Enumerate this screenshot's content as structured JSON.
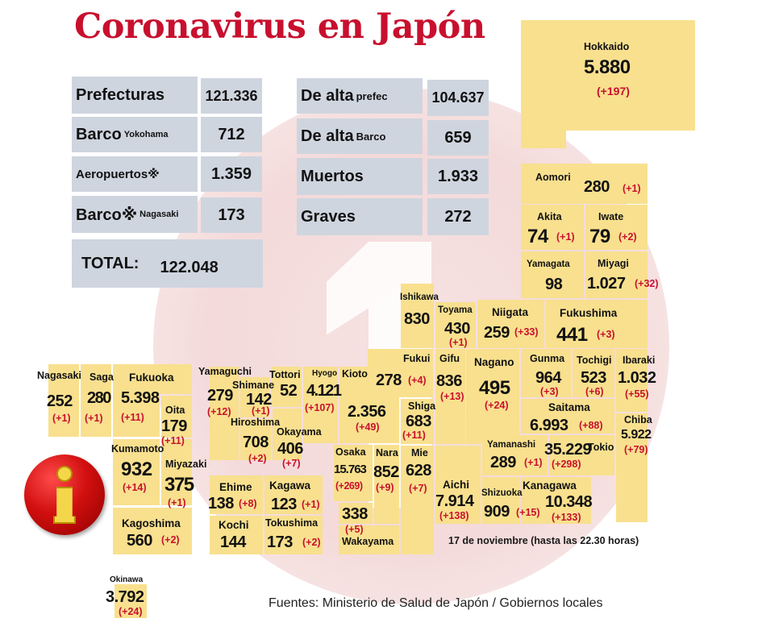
{
  "title": "Coronavirus en Japón",
  "stats_left": [
    {
      "label": "Prefecturas",
      "sub": "",
      "value": "121.336"
    },
    {
      "label": "Barco",
      "sub": "Yokohama",
      "value": "712"
    },
    {
      "label": "Aeropuertos※",
      "sub": "",
      "value": "1.359"
    },
    {
      "label": "Barco※",
      "sub": "Nagasaki",
      "value": "173"
    }
  ],
  "total": {
    "label": "TOTAL:",
    "value": "122.048"
  },
  "stats_right": [
    {
      "label": "De alta",
      "sub": "prefec",
      "value": "104.637"
    },
    {
      "label": "De alta",
      "sub": "Barco",
      "value": "659"
    },
    {
      "label": "Muertos",
      "sub": "",
      "value": "1.933"
    },
    {
      "label": "Graves",
      "sub": "",
      "value": "272"
    }
  ],
  "prefectures": {
    "hokkaido": {
      "name": "Hokkaido",
      "value": "5.880",
      "inc": "(+197)"
    },
    "aomori": {
      "name": "Aomori",
      "value": "280",
      "inc": "(+1)"
    },
    "akita": {
      "name": "Akita",
      "value": "74",
      "inc": "(+1)"
    },
    "iwate": {
      "name": "Iwate",
      "value": "79",
      "inc": "(+2)"
    },
    "yamagata": {
      "name": "Yamagata",
      "value": "98",
      "inc": ""
    },
    "miyagi": {
      "name": "Miyagi",
      "value": "1.027",
      "inc": "(+32)"
    },
    "fukushima": {
      "name": "Fukushima",
      "value": "441",
      "inc": "(+3)"
    },
    "niigata": {
      "name": "Niigata",
      "value": "259",
      "inc": "(+33)"
    },
    "toyama": {
      "name": "Toyama",
      "value": "430",
      "inc": "(+1)"
    },
    "ishikawa": {
      "name": "Ishikawa",
      "value": "830",
      "inc": ""
    },
    "fukui": {
      "name": "Fukui",
      "value": "278",
      "inc": "(+4)"
    },
    "gifu": {
      "name": "Gifu",
      "value": "836",
      "inc": "(+13)"
    },
    "nagano": {
      "name": "Nagano",
      "value": "495",
      "inc": "(+24)"
    },
    "gunma": {
      "name": "Gunma",
      "value": "964",
      "inc": "(+3)"
    },
    "tochigi": {
      "name": "Tochigi",
      "value": "523",
      "inc": "(+6)"
    },
    "ibaraki": {
      "name": "Ibaraki",
      "value": "1.032",
      "inc": "(+55)"
    },
    "saitama": {
      "name": "Saitama",
      "value": "6.993",
      "inc": "(+88)"
    },
    "chiba": {
      "name": "Chiba",
      "value": "5.922",
      "inc": "(+79)"
    },
    "tokio": {
      "name": "Tokio",
      "value": "35.229",
      "inc": "(+298)"
    },
    "yamanashi": {
      "name": "Yamanashi",
      "value": "289",
      "inc": "(+1)"
    },
    "kanagawa": {
      "name": "Kanagawa",
      "value": "10.348",
      "inc": "(+133)"
    },
    "shizuoka": {
      "name": "Shizuoka",
      "value": "909",
      "inc": "(+15)"
    },
    "aichi": {
      "name": "Aichi",
      "value": "7.914",
      "inc": "(+138)"
    },
    "mie": {
      "name": "Mie",
      "value": "628",
      "inc": "(+7)"
    },
    "shiga": {
      "name": "Shiga",
      "value": "683",
      "inc": "(+11)"
    },
    "kioto": {
      "name": "Kioto",
      "value": "2.356",
      "inc": "(+49)"
    },
    "osaka": {
      "name": "Osaka",
      "value": "15.763",
      "inc": "(+269)"
    },
    "nara": {
      "name": "Nara",
      "value": "852",
      "inc": "(+9)"
    },
    "hyogo": {
      "name": "Hyogo",
      "value": "4.121",
      "inc": "(+107)"
    },
    "wakayama": {
      "name": "Wakayama",
      "value": "338",
      "inc": "(+5)"
    },
    "tottori": {
      "name": "Tottori",
      "value": "52",
      "inc": ""
    },
    "shimane": {
      "name": "Shimane",
      "value": "142",
      "inc": "(+1)"
    },
    "okayama": {
      "name": "Okayama",
      "value": "406",
      "inc": "(+7)"
    },
    "hiroshima": {
      "name": "Hiroshima",
      "value": "708",
      "inc": "(+2)"
    },
    "yamaguchi": {
      "name": "Yamaguchi",
      "value": "279",
      "inc": "(+12)"
    },
    "ehime": {
      "name": "Ehime",
      "value": "138",
      "inc": "(+8)"
    },
    "kagawa": {
      "name": "Kagawa",
      "value": "123",
      "inc": "(+1)"
    },
    "kochi": {
      "name": "Kochi",
      "value": "144",
      "inc": ""
    },
    "tokushima": {
      "name": "Tokushima",
      "value": "173",
      "inc": "(+2)"
    },
    "fukuoka": {
      "name": "Fukuoka",
      "value": "5.398",
      "inc": "(+11)"
    },
    "saga": {
      "name": "Saga",
      "value": "280",
      "inc": "(+1)"
    },
    "nagasaki": {
      "name": "Nagasaki",
      "value": "252",
      "inc": "(+1)"
    },
    "oita": {
      "name": "Oita",
      "value": "179",
      "inc": "(+11)"
    },
    "kumamoto": {
      "name": "Kumamoto",
      "value": "932",
      "inc": "(+14)"
    },
    "miyazaki": {
      "name": "Miyazaki",
      "value": "375",
      "inc": "(+1)"
    },
    "kagoshima": {
      "name": "Kagoshima",
      "value": "560",
      "inc": "(+2)"
    },
    "okinawa": {
      "name": "Okinawa",
      "value": "3.792",
      "inc": "(+24)"
    }
  },
  "date_note": "17 de noviembre  (hasta las 22.30 horas)",
  "sources": "Fuentes: Ministerio de Salud de Japón / Gobiernos locales",
  "colors": {
    "title": "#c8102e",
    "increment": "#c8102e",
    "prefecture_fill": "#f8e08e",
    "stat_box": "#cfd5df"
  },
  "icons": {
    "info": "info-icon"
  }
}
